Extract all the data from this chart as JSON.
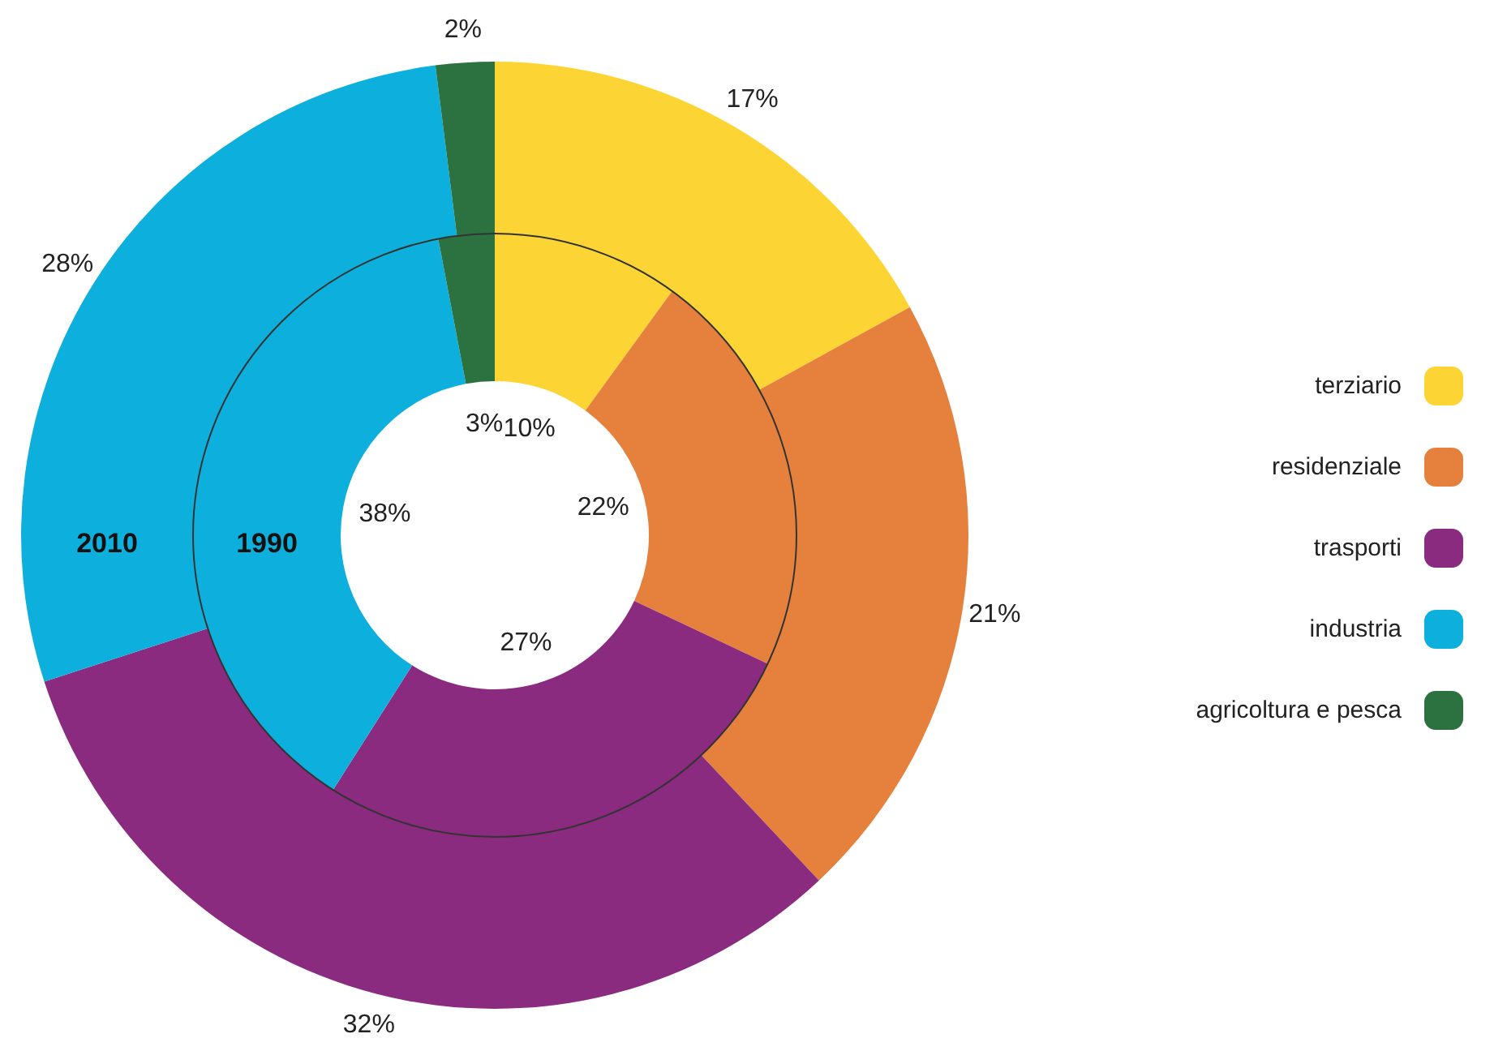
{
  "chart_data": {
    "type": "donut",
    "categories": [
      "terziario",
      "residenziale",
      "trasporti",
      "industria",
      "agricoltura e pesca"
    ],
    "colors": [
      "#fcd535",
      "#e5813d",
      "#8a2b7f",
      "#0db0dc",
      "#2b7240"
    ],
    "series": [
      {
        "name": "1990",
        "values": [
          10,
          22,
          27,
          38,
          3
        ],
        "value_labels": [
          "10%",
          "22%",
          "27%",
          "38%",
          "3%"
        ]
      },
      {
        "name": "2010",
        "values": [
          17,
          21,
          32,
          28,
          2
        ],
        "value_labels": [
          "17%",
          "21%",
          "32%",
          "28%",
          "2%"
        ]
      }
    ],
    "legend": "right"
  }
}
